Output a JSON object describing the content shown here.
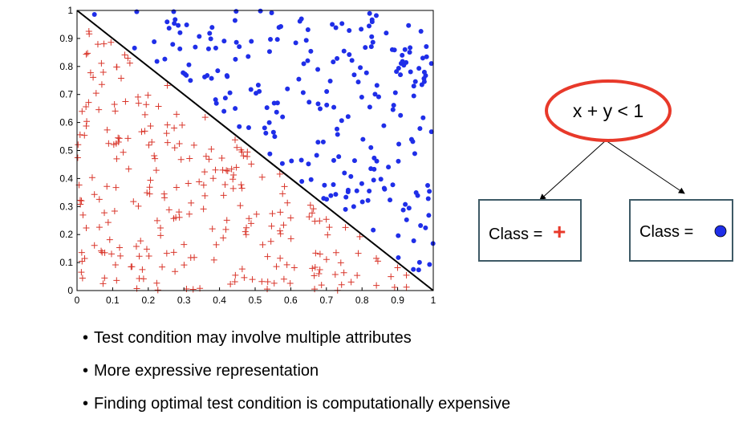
{
  "chart_data": {
    "type": "scatter",
    "xlim": [
      0,
      1
    ],
    "ylim": [
      0,
      1
    ],
    "x_ticks": [
      "0",
      "0.1",
      "0.2",
      "0.3",
      "0.4",
      "0.5",
      "0.6",
      "0.7",
      "0.8",
      "0.9",
      "1"
    ],
    "y_ticks": [
      "0",
      "0.1",
      "0.2",
      "0.3",
      "0.4",
      "0.5",
      "0.6",
      "0.7",
      "0.8",
      "0.9",
      "1"
    ],
    "decision_boundary": "x + y = 1",
    "series": [
      {
        "marker": "+",
        "color": "#d9362b",
        "count": 260,
        "region": "x + y < 1"
      },
      {
        "marker": "circle",
        "color": "#1f2ee8",
        "count": 230,
        "region": "x + y > 1"
      }
    ],
    "grid": false,
    "legend": "none"
  },
  "tree": {
    "root_label": "x + y < 1",
    "root_color": "#e8392a",
    "left_leaf_label": "Class = ",
    "left_leaf_symbol": "+",
    "right_leaf_label": "Class = ",
    "leaf_border_color": "#3e5a66"
  },
  "bullets": [
    "Test condition may involve multiple attributes",
    "More expressive representation",
    "Finding optimal test condition is computationally expensive"
  ]
}
